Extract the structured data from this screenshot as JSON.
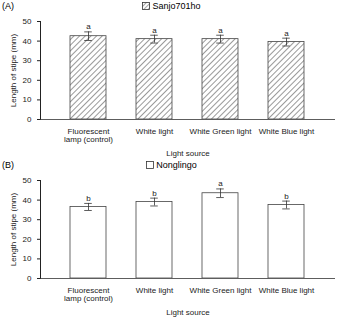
{
  "chart_data": [
    {
      "type": "bar",
      "title": "(A)",
      "categories": [
        "Fluorescent lamp (control)",
        "White light",
        "White Green light",
        "White Blue light"
      ],
      "series": [
        {
          "name": "Sanjo701ho",
          "color": "#7f7f7f",
          "values": [
            42.5,
            41,
            41,
            39.5
          ],
          "errors": [
            2.2,
            2,
            2,
            2
          ],
          "annotations": [
            "a",
            "a",
            "a",
            "a"
          ]
        }
      ],
      "x_label": "Light source",
      "y_label": "Length of stipe (mm)",
      "ylim": [
        0,
        50
      ],
      "yticks": [
        0,
        10,
        20,
        30,
        40,
        50
      ],
      "grid": false,
      "legend": "top"
    },
    {
      "type": "bar",
      "title": "(B)",
      "categories": [
        "Fluorescent lamp (control)",
        "White light",
        "White Green light",
        "White Blue light"
      ],
      "series": [
        {
          "name": "Nonglingo",
          "color": "#ffffff",
          "values": [
            36.5,
            39,
            43.5,
            37.5
          ],
          "errors": [
            1.8,
            2,
            2.2,
            2
          ],
          "annotations": [
            "b",
            "b",
            "a",
            "b"
          ]
        }
      ],
      "x_label": "Light source",
      "y_label": "Length of stipe (mm)",
      "ylim": [
        0,
        50
      ],
      "yticks": [
        0,
        10,
        20,
        30,
        40,
        50
      ],
      "grid": false,
      "legend": "top"
    }
  ]
}
